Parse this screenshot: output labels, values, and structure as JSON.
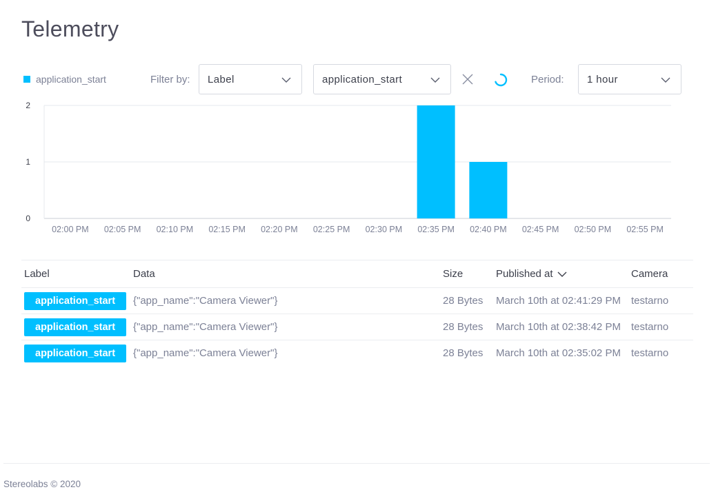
{
  "page": {
    "title": "Telemetry"
  },
  "toolbar": {
    "legend_label": "application_start",
    "filter_label": "Filter by:",
    "filter_field": "Label",
    "filter_value": "application_start",
    "period_label": "Period:",
    "period_value": "1 hour"
  },
  "colors": {
    "accent": "#00bfff",
    "grid": "#e6e8ec",
    "muted_text": "#7c8196"
  },
  "icons": {
    "clear": "close-icon",
    "loading": "spinner-icon",
    "dropdown": "chevron-down-icon",
    "sort": "sort-desc-icon"
  },
  "chart_data": {
    "type": "bar",
    "categories": [
      "02:00 PM",
      "02:05 PM",
      "02:10 PM",
      "02:15 PM",
      "02:20 PM",
      "02:25 PM",
      "02:30 PM",
      "02:35 PM",
      "02:40 PM",
      "02:45 PM",
      "02:50 PM",
      "02:55 PM"
    ],
    "series": [
      {
        "name": "application_start",
        "values": [
          0,
          0,
          0,
          0,
          0,
          0,
          0,
          2,
          1,
          0,
          0,
          0
        ]
      }
    ],
    "yticks": [
      0,
      1,
      2
    ],
    "ylim": [
      0,
      2
    ],
    "grid": true,
    "legend": "top-left"
  },
  "table": {
    "columns": {
      "label": "Label",
      "data": "Data",
      "size": "Size",
      "published": "Published at",
      "camera": "Camera"
    },
    "rows": [
      {
        "label": "application_start",
        "data": "{\"app_name\":\"Camera Viewer\"}",
        "size": "28 Bytes",
        "published": "March 10th at 02:41:29 PM",
        "camera": "testarno"
      },
      {
        "label": "application_start",
        "data": "{\"app_name\":\"Camera Viewer\"}",
        "size": "28 Bytes",
        "published": "March 10th at 02:38:42 PM",
        "camera": "testarno"
      },
      {
        "label": "application_start",
        "data": "{\"app_name\":\"Camera Viewer\"}",
        "size": "28 Bytes",
        "published": "March 10th at 02:35:02 PM",
        "camera": "testarno"
      }
    ]
  },
  "footer": {
    "text": "Stereolabs © 2020"
  }
}
